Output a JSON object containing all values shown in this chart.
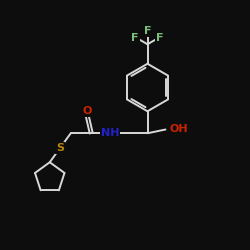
{
  "bg_color": "#0d0d0d",
  "bond_color": "#d8d8d8",
  "atom_colors": {
    "F": "#7abf7a",
    "O": "#cc2200",
    "N": "#2222cc",
    "S": "#b8860b",
    "H": "#d8d8d8",
    "C": "#d8d8d8"
  },
  "bond_width": 1.4,
  "font_size_atom": 8.0,
  "xlim": [
    0,
    10
  ],
  "ylim": [
    0,
    10
  ]
}
